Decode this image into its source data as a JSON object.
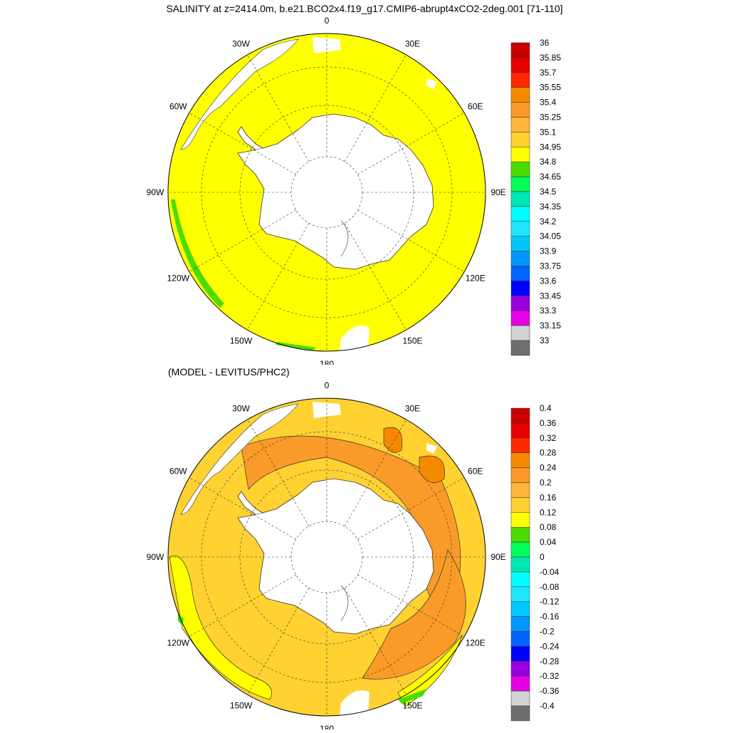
{
  "title": "SALINITY at z=2414.0m, b.e21.BCO2x4.f19_g17.CMIP6-abrupt4xCO2-2deg.001 [71-110]",
  "subtitle": "(MODEL - LEVITUS/PHC2)",
  "longitude_labels": [
    {
      "text": "0",
      "angle": 0
    },
    {
      "text": "30E",
      "angle": 30
    },
    {
      "text": "60E",
      "angle": 60
    },
    {
      "text": "90E",
      "angle": 90
    },
    {
      "text": "120E",
      "angle": 120
    },
    {
      "text": "150E",
      "angle": 150
    },
    {
      "text": "180",
      "angle": 180
    },
    {
      "text": "150W",
      "angle": 210
    },
    {
      "text": "120W",
      "angle": 240
    },
    {
      "text": "90W",
      "angle": 270
    },
    {
      "text": "60W",
      "angle": 300
    },
    {
      "text": "30W",
      "angle": 330
    }
  ],
  "panels": [
    {
      "id": "salinity",
      "ocean_fill": "#ffff00",
      "colorbar": {
        "labels": [
          "36",
          "35.85",
          "35.7",
          "35.55",
          "35.4",
          "35.25",
          "35.1",
          "34.95",
          "34.8",
          "34.65",
          "34.5",
          "34.35",
          "34.2",
          "34.05",
          "33.9",
          "33.75",
          "33.6",
          "33.45",
          "33.3",
          "33.15",
          "33"
        ],
        "colors": [
          "#c80000",
          "#e60000",
          "#ff2800",
          "#f58a00",
          "#fa9a28",
          "#ffb43c",
          "#ffd232",
          "#ffff00",
          "#4bdc00",
          "#00ff5a",
          "#00e6b4",
          "#00ffff",
          "#1ee6fa",
          "#00c8ff",
          "#0096ff",
          "#0064ff",
          "#0000ff",
          "#9600dc",
          "#e600e6",
          "#d2d2d2",
          "#6e6e6e"
        ]
      }
    },
    {
      "id": "difference",
      "ocean_fill": "#ffd232",
      "colorbar": {
        "labels": [
          "0.4",
          "0.36",
          "0.32",
          "0.28",
          "0.24",
          "0.2",
          "0.16",
          "0.12",
          "0.08",
          "0.04",
          "0",
          "-0.04",
          "-0.08",
          "-0.12",
          "-0.16",
          "-0.2",
          "-0.24",
          "-0.28",
          "-0.32",
          "-0.36",
          "-0.4"
        ],
        "colors": [
          "#c80000",
          "#e60000",
          "#ff2800",
          "#f58a00",
          "#fa9a28",
          "#ffb43c",
          "#ffd232",
          "#ffff00",
          "#4bdc00",
          "#00ff5a",
          "#00e6b4",
          "#00ffff",
          "#1ee6fa",
          "#00c8ff",
          "#0096ff",
          "#0064ff",
          "#0000ff",
          "#9600dc",
          "#e600e6",
          "#d2d2d2",
          "#6e6e6e"
        ]
      }
    }
  ]
}
